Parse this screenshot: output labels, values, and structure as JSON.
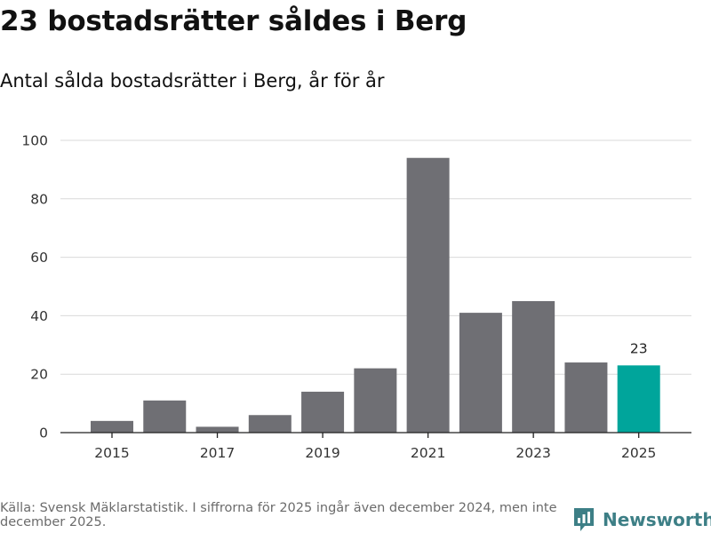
{
  "header": {
    "title": "23 bostadsrätter såldes i Berg",
    "subtitle": "Antal sålda bostadsrätter i Berg, år för år"
  },
  "footer": {
    "source": "Källa: Svensk Mäklarstatistik. I siffrorna för 2025 ingår även december 2024, men inte december 2025.",
    "brand": "Newsworthy"
  },
  "colors": {
    "bar": "#6f6f74",
    "highlight": "#00a59b",
    "grid": "#d9d9d9",
    "axis": "#222222",
    "brand": "#3d7f86"
  },
  "chart_data": {
    "type": "bar",
    "categories": [
      "2015",
      "2016",
      "2017",
      "2018",
      "2019",
      "2020",
      "2021",
      "2022",
      "2023",
      "2024",
      "2025"
    ],
    "values": [
      4,
      11,
      2,
      6,
      14,
      22,
      94,
      41,
      45,
      24,
      23
    ],
    "highlight_index": 10,
    "value_labels": [
      {
        "index": 10,
        "text": "23"
      }
    ],
    "x_tick_labels": [
      "2015",
      "2017",
      "2019",
      "2021",
      "2023",
      "2025"
    ],
    "y_ticks": [
      0,
      20,
      40,
      60,
      80,
      100
    ],
    "ylim": [
      0,
      100
    ],
    "xlabel": "",
    "ylabel": "",
    "grid": true
  }
}
